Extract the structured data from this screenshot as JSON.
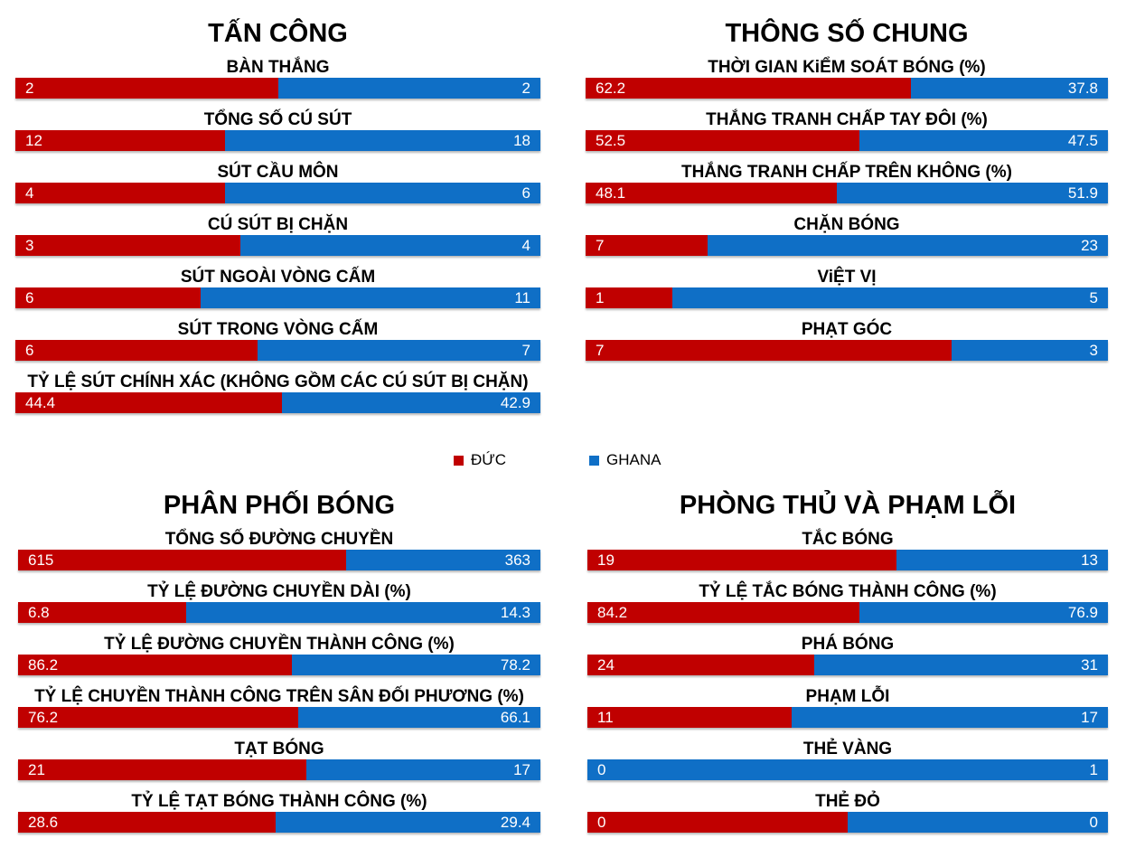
{
  "colors": {
    "germany": "#c00000",
    "ghana": "#0f6fc6"
  },
  "legend": {
    "germany": "ĐỨC",
    "ghana": "GHANA"
  },
  "chart_data": [
    {
      "type": "bar",
      "title": "TẤN CÔNG",
      "categories": [
        "BÀN THẮNG",
        "TỔNG SỐ CÚ SÚT",
        "SÚT CẦU MÔN",
        "CÚ SÚT BỊ CHẶN",
        "SÚT  NGOÀI VÒNG CẤM",
        "SÚT  TRONG VÒNG CẤM",
        "TỶ LỆ SÚT CHÍNH XÁC (KHÔNG  GỒM CÁC CÚ SÚT BỊ CHẶN)"
      ],
      "series": [
        {
          "name": "ĐỨC",
          "values": [
            "2",
            "12",
            "4",
            "3",
            "6",
            "6",
            "44.4"
          ]
        },
        {
          "name": "GHANA",
          "values": [
            "2",
            "18",
            "6",
            "4",
            "11",
            "7",
            "42.9"
          ]
        }
      ]
    },
    {
      "type": "bar",
      "title": "THÔNG SỐ CHUNG",
      "categories": [
        "THỜI GIAN KiỂM SOÁT BÓNG (%)",
        "THẮNG TRANH CHẤP TAY ĐÔI (%)",
        "THẮNG TRANH CHẤP TRÊN KHÔNG (%)",
        "CHẶN BÓNG",
        "ViỆT VỊ",
        "PHẠT GÓC"
      ],
      "series": [
        {
          "name": "ĐỨC",
          "values": [
            "62.2",
            "52.5",
            "48.1",
            "7",
            "1",
            "7"
          ]
        },
        {
          "name": "GHANA",
          "values": [
            "37.8",
            "47.5",
            "51.9",
            "23",
            "5",
            "3"
          ]
        }
      ]
    },
    {
      "type": "bar",
      "title": "PHÂN PHỐI BÓNG",
      "categories": [
        "TỔNG SỐ ĐƯỜNG CHUYỀN",
        "TỶ LỆ ĐƯỜNG CHUYỀN DÀI (%)",
        "TỶ LỆ ĐƯỜNG CHUYỀN  THÀNH CÔNG (%)",
        "TỶ LỆ CHUYỀN THÀNH CÔNG TRÊN SÂN ĐỐI PHƯƠNG (%)",
        "TẠT BÓNG",
        "TỶ LỆ TẠT BÓNG THÀNH CÔNG (%)"
      ],
      "series": [
        {
          "name": "ĐỨC",
          "values": [
            "615",
            "6.8",
            "86.2",
            "76.2",
            "21",
            "28.6"
          ]
        },
        {
          "name": "GHANA",
          "values": [
            "363",
            "14.3",
            "78.2",
            "66.1",
            "17",
            "29.4"
          ]
        }
      ]
    },
    {
      "type": "bar",
      "title": "PHÒNG THỦ VÀ PHẠM LỖI",
      "categories": [
        "TẮC BÓNG",
        "TỶ LỆ TẮC BÓNG THÀNH CÔNG (%)",
        "PHÁ BÓNG",
        "PHẠM LỖI",
        "THẺ VÀNG",
        "THẺ ĐỎ"
      ],
      "series": [
        {
          "name": "ĐỨC",
          "values": [
            "19",
            "84.2",
            "24",
            "11",
            "0",
            "0"
          ]
        },
        {
          "name": "GHANA",
          "values": [
            "13",
            "76.9",
            "31",
            "17",
            "1",
            "0"
          ]
        }
      ]
    }
  ]
}
